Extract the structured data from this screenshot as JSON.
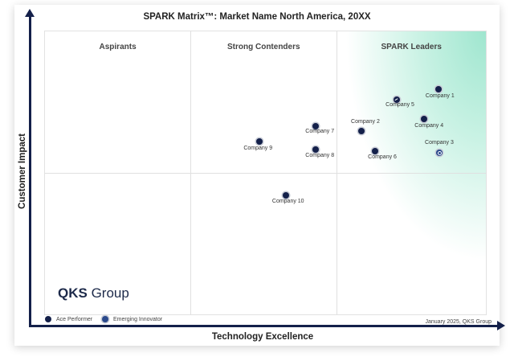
{
  "chart_data": {
    "type": "scatter",
    "title": "SPARK Matrix™: Market Name North America, 20XX",
    "xlabel": "Technology Excellence",
    "ylabel": "Customer Impact",
    "quadrants": [
      "Aspirants",
      "Strong Contenders",
      "SPARK Leaders"
    ],
    "xlim": [
      0,
      100
    ],
    "ylim": [
      0,
      100
    ],
    "grid": false,
    "legend_position": "bottom-left",
    "leaders_color": "#9fe6cf",
    "marker_color": "#14204a",
    "points": [
      {
        "name": "Company 1",
        "x": 88.9,
        "y": 79.7,
        "type": "normal"
      },
      {
        "name": "Company 2",
        "x": 71.5,
        "y": 65.0,
        "type": "normal"
      },
      {
        "name": "Company 3",
        "x": 89.1,
        "y": 57.3,
        "type": "emerging"
      },
      {
        "name": "Company 4",
        "x": 85.7,
        "y": 69.2,
        "type": "normal"
      },
      {
        "name": "Company 5",
        "x": 79.5,
        "y": 76.0,
        "type": "ace"
      },
      {
        "name": "Company 6",
        "x": 74.6,
        "y": 57.9,
        "type": "normal"
      },
      {
        "name": "Company 7",
        "x": 61.2,
        "y": 66.7,
        "type": "normal"
      },
      {
        "name": "Company 8",
        "x": 61.2,
        "y": 58.5,
        "type": "normal"
      },
      {
        "name": "Company 9",
        "x": 48.5,
        "y": 61.3,
        "type": "normal"
      },
      {
        "name": "Company 10",
        "x": 54.4,
        "y": 42.4,
        "type": "normal"
      }
    ]
  },
  "legend": {
    "ace": "Ace Performer",
    "emerging": "Emerging Innovator"
  },
  "logo": {
    "bold": "QKS",
    "rest": " Group"
  },
  "credit": "January 2025, QKS Group"
}
